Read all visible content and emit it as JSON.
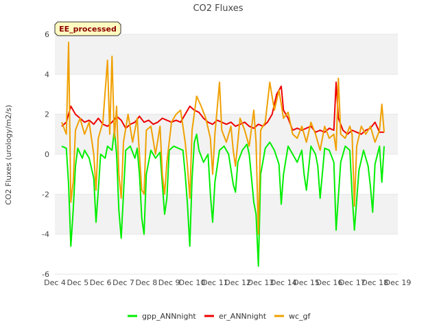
{
  "chart_data": {
    "type": "line",
    "title": "CO2 Fluxes",
    "ylabel": "CO2 Fluxes (urology/m2/s)",
    "xlabel": "",
    "badge": "EE_processed",
    "xlim": [
      4,
      19
    ],
    "ylim": [
      -6,
      6
    ],
    "x_ticks": [
      {
        "value": 4,
        "label": "Dec 4"
      },
      {
        "value": 5,
        "label": "Dec 5"
      },
      {
        "value": 6,
        "label": "Dec 6"
      },
      {
        "value": 7,
        "label": "Dec 7"
      },
      {
        "value": 8,
        "label": "Dec 8"
      },
      {
        "value": 9,
        "label": "Dec 9"
      },
      {
        "value": 10,
        "label": "Dec 10"
      },
      {
        "value": 11,
        "label": "Dec 11"
      },
      {
        "value": 12,
        "label": "Dec 12"
      },
      {
        "value": 13,
        "label": "Dec 13"
      },
      {
        "value": 14,
        "label": "Dec 14"
      },
      {
        "value": 15,
        "label": "Dec 15"
      },
      {
        "value": 16,
        "label": "Dec 16"
      },
      {
        "value": 17,
        "label": "Dec 17"
      },
      {
        "value": 18,
        "label": "Dec 18"
      },
      {
        "value": 19,
        "label": "Dec 19"
      }
    ],
    "y_ticks": [
      {
        "value": -6,
        "label": "-6"
      },
      {
        "value": -4,
        "label": "-4"
      },
      {
        "value": -2,
        "label": "-2"
      },
      {
        "value": 0,
        "label": "0"
      },
      {
        "value": 2,
        "label": "2"
      },
      {
        "value": 4,
        "label": "4"
      },
      {
        "value": 6,
        "label": "6"
      }
    ],
    "legend_position": "bottom-center",
    "series": [
      {
        "name": "gpp_ANNnight",
        "color": "#00ee00",
        "points": [
          [
            4.3,
            0.4
          ],
          [
            4.5,
            0.3
          ],
          [
            4.6,
            -1.5
          ],
          [
            4.7,
            -4.6
          ],
          [
            4.8,
            -2.8
          ],
          [
            4.9,
            -0.6
          ],
          [
            5.0,
            0.3
          ],
          [
            5.2,
            -0.2
          ],
          [
            5.3,
            0.2
          ],
          [
            5.5,
            -0.2
          ],
          [
            5.7,
            -1.2
          ],
          [
            5.8,
            -3.4
          ],
          [
            5.9,
            -1.8
          ],
          [
            6.0,
            0.0
          ],
          [
            6.2,
            -0.2
          ],
          [
            6.3,
            0.4
          ],
          [
            6.5,
            0.2
          ],
          [
            6.6,
            1.2
          ],
          [
            6.7,
            0.0
          ],
          [
            6.8,
            -2.8
          ],
          [
            6.9,
            -4.2
          ],
          [
            7.0,
            -2.0
          ],
          [
            7.1,
            0.2
          ],
          [
            7.3,
            0.4
          ],
          [
            7.5,
            -0.2
          ],
          [
            7.6,
            0.3
          ],
          [
            7.7,
            -1.0
          ],
          [
            7.8,
            -3.2
          ],
          [
            7.9,
            -4.0
          ],
          [
            8.0,
            -1.0
          ],
          [
            8.2,
            0.2
          ],
          [
            8.4,
            -0.2
          ],
          [
            8.6,
            0.1
          ],
          [
            8.7,
            -1.5
          ],
          [
            8.8,
            -3.0
          ],
          [
            8.9,
            -2.2
          ],
          [
            9.0,
            0.2
          ],
          [
            9.2,
            0.4
          ],
          [
            9.4,
            0.3
          ],
          [
            9.6,
            0.2
          ],
          [
            9.7,
            -1.0
          ],
          [
            9.8,
            -2.5
          ],
          [
            9.9,
            -4.6
          ],
          [
            10.0,
            -1.2
          ],
          [
            10.1,
            0.6
          ],
          [
            10.2,
            1.0
          ],
          [
            10.3,
            0.2
          ],
          [
            10.5,
            -0.4
          ],
          [
            10.7,
            0.0
          ],
          [
            10.8,
            -2.0
          ],
          [
            10.9,
            -3.4
          ],
          [
            11.0,
            -1.4
          ],
          [
            11.2,
            0.2
          ],
          [
            11.4,
            0.4
          ],
          [
            11.6,
            0.0
          ],
          [
            11.8,
            -1.5
          ],
          [
            11.9,
            -1.9
          ],
          [
            12.0,
            -0.4
          ],
          [
            12.2,
            0.2
          ],
          [
            12.4,
            0.5
          ],
          [
            12.5,
            0.0
          ],
          [
            12.6,
            -1.2
          ],
          [
            12.7,
            -2.4
          ],
          [
            12.8,
            -3.0
          ],
          [
            12.9,
            -5.6
          ],
          [
            13.0,
            -1.0
          ],
          [
            13.2,
            0.3
          ],
          [
            13.4,
            0.6
          ],
          [
            13.6,
            0.2
          ],
          [
            13.8,
            -0.5
          ],
          [
            13.9,
            -2.5
          ],
          [
            14.0,
            -1.0
          ],
          [
            14.2,
            0.4
          ],
          [
            14.4,
            0.0
          ],
          [
            14.6,
            -0.4
          ],
          [
            14.8,
            0.2
          ],
          [
            14.9,
            -1.0
          ],
          [
            15.0,
            -1.8
          ],
          [
            15.2,
            0.4
          ],
          [
            15.4,
            0.0
          ],
          [
            15.5,
            -0.6
          ],
          [
            15.6,
            -2.2
          ],
          [
            15.8,
            0.3
          ],
          [
            16.0,
            0.2
          ],
          [
            16.2,
            -0.4
          ],
          [
            16.3,
            -3.8
          ],
          [
            16.5,
            -0.4
          ],
          [
            16.7,
            0.4
          ],
          [
            16.9,
            0.2
          ],
          [
            17.0,
            -2.0
          ],
          [
            17.1,
            -3.8
          ],
          [
            17.3,
            -0.8
          ],
          [
            17.5,
            0.2
          ],
          [
            17.7,
            -0.6
          ],
          [
            17.8,
            -1.6
          ],
          [
            17.9,
            -2.9
          ],
          [
            18.0,
            -0.5
          ],
          [
            18.2,
            0.4
          ],
          [
            18.3,
            -1.4
          ],
          [
            18.4,
            0.4
          ]
        ]
      },
      {
        "name": "er_ANNnight",
        "color": "#ee0000",
        "points": [
          [
            4.3,
            1.4
          ],
          [
            4.5,
            1.6
          ],
          [
            4.7,
            2.4
          ],
          [
            4.9,
            2.0
          ],
          [
            5.1,
            1.8
          ],
          [
            5.3,
            1.6
          ],
          [
            5.5,
            1.7
          ],
          [
            5.7,
            1.5
          ],
          [
            5.9,
            1.8
          ],
          [
            6.1,
            1.5
          ],
          [
            6.3,
            1.4
          ],
          [
            6.5,
            1.6
          ],
          [
            6.7,
            1.9
          ],
          [
            6.9,
            1.7
          ],
          [
            7.1,
            1.3
          ],
          [
            7.3,
            1.5
          ],
          [
            7.5,
            1.6
          ],
          [
            7.7,
            1.9
          ],
          [
            7.9,
            1.6
          ],
          [
            8.1,
            1.7
          ],
          [
            8.3,
            1.5
          ],
          [
            8.5,
            1.6
          ],
          [
            8.7,
            1.8
          ],
          [
            8.9,
            1.7
          ],
          [
            9.1,
            1.6
          ],
          [
            9.3,
            1.7
          ],
          [
            9.5,
            1.6
          ],
          [
            9.7,
            2.0
          ],
          [
            9.9,
            2.4
          ],
          [
            10.1,
            2.2
          ],
          [
            10.3,
            2.1
          ],
          [
            10.5,
            1.8
          ],
          [
            10.7,
            1.6
          ],
          [
            10.9,
            1.5
          ],
          [
            11.1,
            1.7
          ],
          [
            11.3,
            1.6
          ],
          [
            11.5,
            1.5
          ],
          [
            11.7,
            1.6
          ],
          [
            11.9,
            1.4
          ],
          [
            12.1,
            1.5
          ],
          [
            12.3,
            1.6
          ],
          [
            12.5,
            1.4
          ],
          [
            12.7,
            1.3
          ],
          [
            12.9,
            1.5
          ],
          [
            13.1,
            1.4
          ],
          [
            13.3,
            1.6
          ],
          [
            13.5,
            2.0
          ],
          [
            13.7,
            3.0
          ],
          [
            13.9,
            3.4
          ],
          [
            14.0,
            2.2
          ],
          [
            14.2,
            1.8
          ],
          [
            14.4,
            1.2
          ],
          [
            14.6,
            1.3
          ],
          [
            14.8,
            1.2
          ],
          [
            15.0,
            1.3
          ],
          [
            15.2,
            1.4
          ],
          [
            15.4,
            1.1
          ],
          [
            15.6,
            1.2
          ],
          [
            15.8,
            1.1
          ],
          [
            16.0,
            1.3
          ],
          [
            16.2,
            1.2
          ],
          [
            16.3,
            3.6
          ],
          [
            16.4,
            1.8
          ],
          [
            16.6,
            1.2
          ],
          [
            16.8,
            1.0
          ],
          [
            17.0,
            1.2
          ],
          [
            17.2,
            1.1
          ],
          [
            17.4,
            1.0
          ],
          [
            17.6,
            1.2
          ],
          [
            17.8,
            1.3
          ],
          [
            18.0,
            1.6
          ],
          [
            18.2,
            1.1
          ],
          [
            18.4,
            1.1
          ]
        ]
      },
      {
        "name": "wc_gf",
        "color": "#f0a000",
        "points": [
          [
            4.3,
            1.6
          ],
          [
            4.5,
            1.0
          ],
          [
            4.6,
            5.6
          ],
          [
            4.7,
            -2.4
          ],
          [
            4.8,
            -1.4
          ],
          [
            4.9,
            1.2
          ],
          [
            5.1,
            1.8
          ],
          [
            5.3,
            1.0
          ],
          [
            5.5,
            1.6
          ],
          [
            5.7,
            0.0
          ],
          [
            5.8,
            -1.8
          ],
          [
            5.9,
            0.8
          ],
          [
            6.1,
            1.6
          ],
          [
            6.3,
            4.7
          ],
          [
            6.4,
            1.0
          ],
          [
            6.5,
            4.9
          ],
          [
            6.6,
            0.8
          ],
          [
            6.7,
            2.4
          ],
          [
            6.8,
            -1.0
          ],
          [
            6.9,
            -2.2
          ],
          [
            7.0,
            0.6
          ],
          [
            7.2,
            2.0
          ],
          [
            7.4,
            0.6
          ],
          [
            7.6,
            1.8
          ],
          [
            7.7,
            0.0
          ],
          [
            7.8,
            -1.8
          ],
          [
            7.9,
            -2.0
          ],
          [
            8.0,
            1.2
          ],
          [
            8.2,
            1.4
          ],
          [
            8.4,
            0.0
          ],
          [
            8.6,
            1.4
          ],
          [
            8.7,
            -1.0
          ],
          [
            8.8,
            -2.0
          ],
          [
            8.9,
            -0.4
          ],
          [
            9.1,
            1.6
          ],
          [
            9.3,
            2.0
          ],
          [
            9.5,
            2.2
          ],
          [
            9.7,
            0.6
          ],
          [
            9.8,
            -0.6
          ],
          [
            9.9,
            -2.2
          ],
          [
            10.0,
            1.2
          ],
          [
            10.2,
            2.9
          ],
          [
            10.4,
            2.4
          ],
          [
            10.6,
            1.8
          ],
          [
            10.8,
            0.8
          ],
          [
            10.9,
            -1.0
          ],
          [
            11.0,
            1.0
          ],
          [
            11.2,
            3.6
          ],
          [
            11.3,
            1.2
          ],
          [
            11.5,
            0.6
          ],
          [
            11.7,
            1.4
          ],
          [
            11.8,
            0.2
          ],
          [
            11.9,
            -0.6
          ],
          [
            12.1,
            1.8
          ],
          [
            12.3,
            1.2
          ],
          [
            12.5,
            0.4
          ],
          [
            12.7,
            2.2
          ],
          [
            12.8,
            0.6
          ],
          [
            12.9,
            -4.0
          ],
          [
            13.0,
            1.2
          ],
          [
            13.2,
            1.6
          ],
          [
            13.4,
            3.6
          ],
          [
            13.6,
            2.2
          ],
          [
            13.8,
            3.2
          ],
          [
            14.0,
            1.8
          ],
          [
            14.2,
            2.1
          ],
          [
            14.4,
            1.0
          ],
          [
            14.6,
            0.8
          ],
          [
            14.8,
            1.4
          ],
          [
            15.0,
            0.6
          ],
          [
            15.2,
            1.6
          ],
          [
            15.4,
            1.0
          ],
          [
            15.6,
            0.2
          ],
          [
            15.8,
            1.4
          ],
          [
            16.0,
            0.8
          ],
          [
            16.2,
            1.0
          ],
          [
            16.3,
            0.2
          ],
          [
            16.4,
            3.8
          ],
          [
            16.5,
            1.0
          ],
          [
            16.7,
            0.8
          ],
          [
            16.9,
            1.4
          ],
          [
            17.0,
            1.0
          ],
          [
            17.1,
            -2.6
          ],
          [
            17.2,
            0.4
          ],
          [
            17.4,
            1.4
          ],
          [
            17.6,
            1.0
          ],
          [
            17.8,
            1.4
          ],
          [
            18.0,
            0.6
          ],
          [
            18.2,
            1.2
          ],
          [
            18.3,
            2.5
          ],
          [
            18.4,
            1.1
          ]
        ]
      }
    ]
  }
}
